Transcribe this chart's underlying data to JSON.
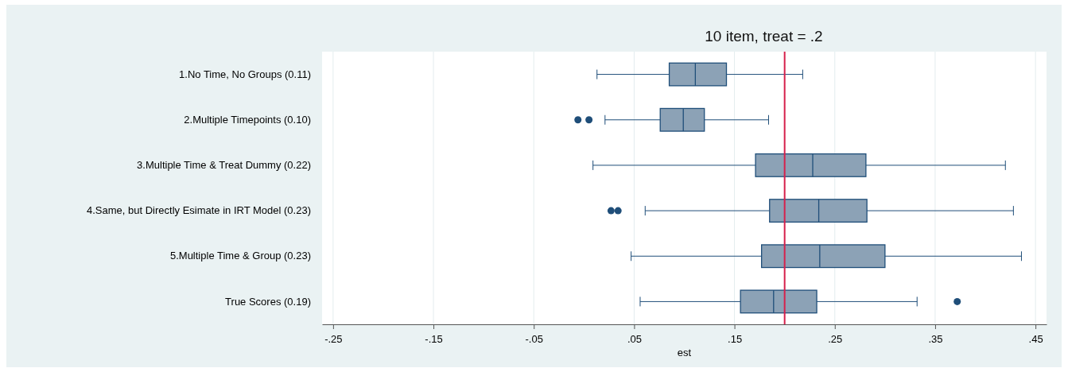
{
  "chart_data": {
    "type": "box",
    "orientation": "horizontal",
    "title": "10 item, treat = .2",
    "xlabel": "est",
    "categories": [
      "1.No Time, No Groups (0.11)",
      "2.Multiple Timepoints (0.10)",
      "3.Multiple Time & Treat Dummy (0.22)",
      "4.Same, but Directly Esimate in IRT Model (0.23)",
      "5.Multiple Time & Group (0.23)",
      "True Scores (0.19)"
    ],
    "boxes": [
      {
        "low": 0.013,
        "q1": 0.085,
        "median": 0.111,
        "q3": 0.142,
        "high": 0.218
      },
      {
        "low": 0.021,
        "q1": 0.076,
        "median": 0.099,
        "q3": 0.12,
        "high": 0.184,
        "outliers": [
          -0.006,
          0.005
        ]
      },
      {
        "low": 0.009,
        "q1": 0.171,
        "median": 0.228,
        "q3": 0.281,
        "high": 0.42
      },
      {
        "low": 0.061,
        "q1": 0.185,
        "median": 0.234,
        "q3": 0.282,
        "high": 0.428,
        "outliers": [
          0.027,
          0.034
        ]
      },
      {
        "low": 0.047,
        "q1": 0.177,
        "median": 0.235,
        "q3": 0.3,
        "high": 0.436
      },
      {
        "low": 0.056,
        "q1": 0.156,
        "median": 0.189,
        "q3": 0.232,
        "high": 0.332,
        "outliers": [
          0.372
        ]
      }
    ],
    "color": "#8ca2b6",
    "xlim": [
      -0.261,
      0.461
    ],
    "xticks": [
      {
        "value": -0.25,
        "label": "-.25"
      },
      {
        "value": -0.15,
        "label": "-.15"
      },
      {
        "value": -0.05,
        "label": "-.05"
      },
      {
        "value": 0.05,
        "label": ".05"
      },
      {
        "value": 0.15,
        "label": ".15"
      },
      {
        "value": 0.25,
        "label": ".25"
      },
      {
        "value": 0.35,
        "label": ".35"
      },
      {
        "value": 0.45,
        "label": ".45"
      }
    ],
    "grid": "x",
    "ref_lines": [
      {
        "axis": "x",
        "value": 0.2,
        "color": "#d6204c"
      }
    ]
  }
}
